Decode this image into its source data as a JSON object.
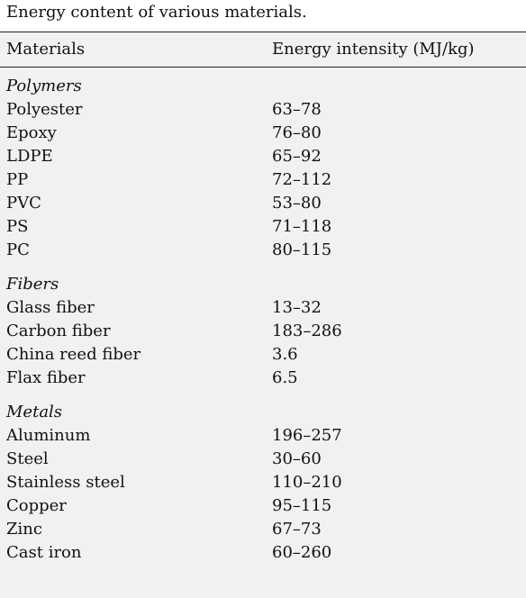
{
  "caption": "Energy content of various materials.",
  "header": {
    "col1": "Materials",
    "col2": "Energy intensity (MJ/kg)"
  },
  "groups": [
    {
      "name": "Polymers",
      "rows": [
        {
          "material": "Polyester",
          "value": "63–78"
        },
        {
          "material": "Epoxy",
          "value": "76–80"
        },
        {
          "material": "LDPE",
          "value": "65–92"
        },
        {
          "material": "PP",
          "value": "72–112"
        },
        {
          "material": "PVC",
          "value": "53–80"
        },
        {
          "material": "PS",
          "value": "71–118"
        },
        {
          "material": "PC",
          "value": "80–115"
        }
      ]
    },
    {
      "name": "Fibers",
      "rows": [
        {
          "material": "Glass fiber",
          "value": "13–32"
        },
        {
          "material": "Carbon fiber",
          "value": "183–286"
        },
        {
          "material": "China reed fiber",
          "value": "3.6"
        },
        {
          "material": "Flax fiber",
          "value": "6.5"
        }
      ]
    },
    {
      "name": "Metals",
      "rows": [
        {
          "material": "Aluminum",
          "value": "196–257"
        },
        {
          "material": "Steel",
          "value": "30–60"
        },
        {
          "material": "Stainless steel",
          "value": "110–210"
        },
        {
          "material": "Copper",
          "value": "95–115"
        },
        {
          "material": "Zinc",
          "value": "67–73"
        },
        {
          "material": "Cast iron",
          "value": "60–260"
        }
      ]
    }
  ]
}
